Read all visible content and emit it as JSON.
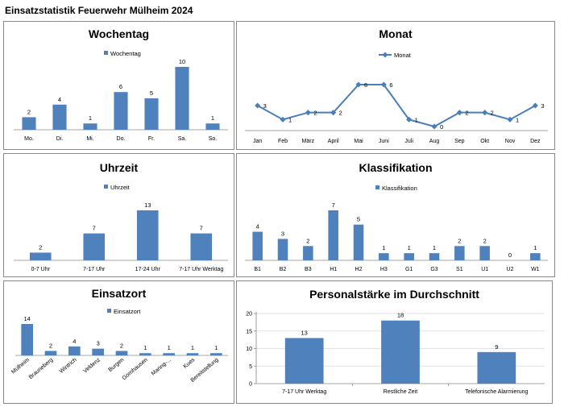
{
  "page_title": "Einsatzstatistik Feuerwehr Mülheim 2024",
  "colors": {
    "bar": "#4f81bd",
    "line": "#4a7ebb",
    "axis": "#868686",
    "grid": "#d9d9d9"
  },
  "chart_data": [
    {
      "id": "wochentag",
      "type": "bar",
      "title": "Wochentag",
      "legend": "Wochentag",
      "categories": [
        "Mo.",
        "Di.",
        "Mi.",
        "Do.",
        "Fr.",
        "Sa.",
        "So."
      ],
      "values": [
        2,
        4,
        1,
        6,
        5,
        10,
        1
      ],
      "ylim": [
        0,
        10
      ],
      "grid": false,
      "legend_position": "top"
    },
    {
      "id": "monat",
      "type": "line",
      "title": "Monat",
      "legend": "Monat",
      "categories": [
        "Jan",
        "Feb",
        "März",
        "April",
        "Mai",
        "Juni",
        "Juli",
        "Aug",
        "Sep",
        "Okt",
        "Nov",
        "Dez"
      ],
      "values": [
        3,
        1,
        2,
        2,
        6,
        6,
        1,
        0,
        2,
        2,
        1,
        3
      ],
      "ylim": [
        0,
        6
      ],
      "grid": false,
      "legend_position": "top"
    },
    {
      "id": "uhrzeit",
      "type": "bar",
      "title": "Uhrzeit",
      "legend": "Uhrzeit",
      "categories": [
        "0-7 Uhr",
        "7-17 Uhr",
        "17-24 Uhr",
        "7-17 Uhr Werktag"
      ],
      "values": [
        2,
        7,
        13,
        7
      ],
      "ylim": [
        0,
        13
      ],
      "grid": false,
      "legend_position": "top"
    },
    {
      "id": "klassifikation",
      "type": "bar",
      "title": "Klassifikation",
      "legend": "Klassifikation",
      "categories": [
        "B1",
        "B2",
        "B3",
        "H1",
        "H2",
        "H3",
        "G1",
        "G3",
        "S1",
        "U1",
        "U2",
        "W1"
      ],
      "values": [
        4,
        3,
        2,
        7,
        5,
        1,
        1,
        1,
        2,
        2,
        0,
        1
      ],
      "ylim": [
        0,
        7
      ],
      "grid": false,
      "legend_position": "top"
    },
    {
      "id": "einsatzort",
      "type": "bar",
      "title": "Einsatzort",
      "legend": "Einsatzort",
      "categories": [
        "Mülheim",
        "Brauneberg",
        "Wintrich",
        "Veldenz",
        "Burgen",
        "Gornhausen",
        "Maring-...",
        "Kues",
        "Bereitstellung"
      ],
      "values": [
        14,
        2,
        4,
        3,
        2,
        1,
        1,
        1,
        1
      ],
      "ylim": [
        0,
        14
      ],
      "grid": false,
      "legend_position": "top-left"
    },
    {
      "id": "personal",
      "type": "bar",
      "title": "Personalstärke im Durchschnitt",
      "categories": [
        "7-17 Uhr Werktag",
        "Restliche Zeit",
        "Telefonische Alarmierung"
      ],
      "values": [
        13,
        18,
        9
      ],
      "ylim": [
        0,
        20
      ],
      "yticks": [
        "0",
        "5",
        "10",
        "15",
        "20"
      ],
      "grid": true
    }
  ]
}
